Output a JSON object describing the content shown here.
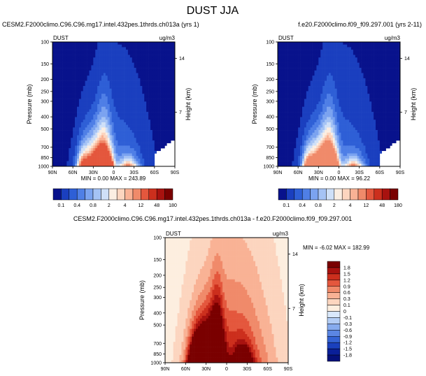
{
  "page_title": "DUST JJA",
  "chart_data": [
    {
      "type": "heatmap",
      "id": "p1",
      "title_left": "CESM2.F2000climo.C96.C96.mg17.intel.432pes.1thrds.ch013a (yrs 1)",
      "corner_left": "DUST",
      "corner_right": "ug/m3",
      "ylabel": "Pressure (mb)",
      "ylabel_right": "Height (km)",
      "x_ticks": [
        "90N",
        "60N",
        "30N",
        "0",
        "30S",
        "60S",
        "90S"
      ],
      "y_ticks": [
        "100",
        "150",
        "200",
        "250",
        "300",
        "400",
        "500",
        "700",
        "850",
        "1000"
      ],
      "height_ticks": [
        "14",
        "7"
      ],
      "min_label": "MIN =",
      "min_value": "0.00",
      "max_label": "MAX =",
      "max_value": "243.89",
      "colorbar_labels": [
        "0.1",
        "0.4",
        "0.8",
        "2",
        "4",
        "12",
        "48",
        "180"
      ],
      "colorbar_colors": [
        "#08128c",
        "#1a3fbf",
        "#2e5fd6",
        "#4f7fe6",
        "#7ba3f0",
        "#a5c3f5",
        "#cfe0f8",
        "#fbeee2",
        "#fcd5bf",
        "#f9b295",
        "#f08a6a",
        "#e4573d",
        "#cc2f1d",
        "#a8120f",
        "#7a0000"
      ],
      "max_level": 11
    },
    {
      "type": "heatmap",
      "id": "p2",
      "title_right": "f.e20.F2000climo.f09_f09.297.001 (yrs 2-11)",
      "corner_left": "DUST",
      "corner_right": "ug/m3",
      "ylabel": "Pressure (mb)",
      "ylabel_right": "Height (km)",
      "x_ticks": [
        "90N",
        "60N",
        "30N",
        "0",
        "30S",
        "60S",
        "90S"
      ],
      "y_ticks": [
        "100",
        "150",
        "200",
        "250",
        "300",
        "400",
        "500",
        "700",
        "850",
        "1000"
      ],
      "height_ticks": [
        "14",
        "7"
      ],
      "min_label": "MIN =",
      "min_value": "0.00",
      "max_label": "MAX =",
      "max_value": "96.22",
      "colorbar_labels": [
        "0.1",
        "0.4",
        "0.8",
        "2",
        "4",
        "12",
        "48",
        "180"
      ],
      "colorbar_colors": [
        "#08128c",
        "#1a3fbf",
        "#2e5fd6",
        "#4f7fe6",
        "#7ba3f0",
        "#a5c3f5",
        "#cfe0f8",
        "#fbeee2",
        "#fcd5bf",
        "#f9b295",
        "#f08a6a",
        "#e4573d",
        "#cc2f1d",
        "#a8120f",
        "#7a0000"
      ],
      "max_level": 10
    },
    {
      "type": "heatmap",
      "id": "p3",
      "title": "CESM2.F2000climo.C96.C96.mg17.intel.432pes.1thrds.ch013a - f.e20.F2000climo.f09_f09.297.001",
      "corner_left": "DUST",
      "corner_right": "ug/m3",
      "ylabel": "Pressure (mb)",
      "ylabel_right": "Height (km)",
      "x_ticks": [
        "90N",
        "60N",
        "30N",
        "0",
        "30S",
        "60S",
        "90S"
      ],
      "y_ticks": [
        "100",
        "150",
        "200",
        "250",
        "300",
        "400",
        "500",
        "700",
        "850",
        "1000"
      ],
      "height_ticks": [
        "14",
        "7"
      ],
      "min_label": "MIN =",
      "min_value": "-6.02",
      "max_label": "MAX =",
      "max_value": "182.99",
      "colorbar_labels": [
        "1.8",
        "1.5",
        "1.2",
        "0.9",
        "0.6",
        "0.3",
        "0.1",
        "0",
        "-0.1",
        "-0.3",
        "-0.6",
        "-0.9",
        "-1.2",
        "-1.5",
        "-1.8"
      ],
      "diff_colors": [
        "#7a0000",
        "#a8120f",
        "#cc2f1d",
        "#e4573d",
        "#f08a6a",
        "#f9b295",
        "#fcd5bf",
        "#fdeedf",
        "#d9e8fb",
        "#b3cdf5",
        "#86abee",
        "#5b86e3",
        "#3463d4",
        "#1a40bd",
        "#0a1f99",
        "#05107a"
      ]
    }
  ]
}
